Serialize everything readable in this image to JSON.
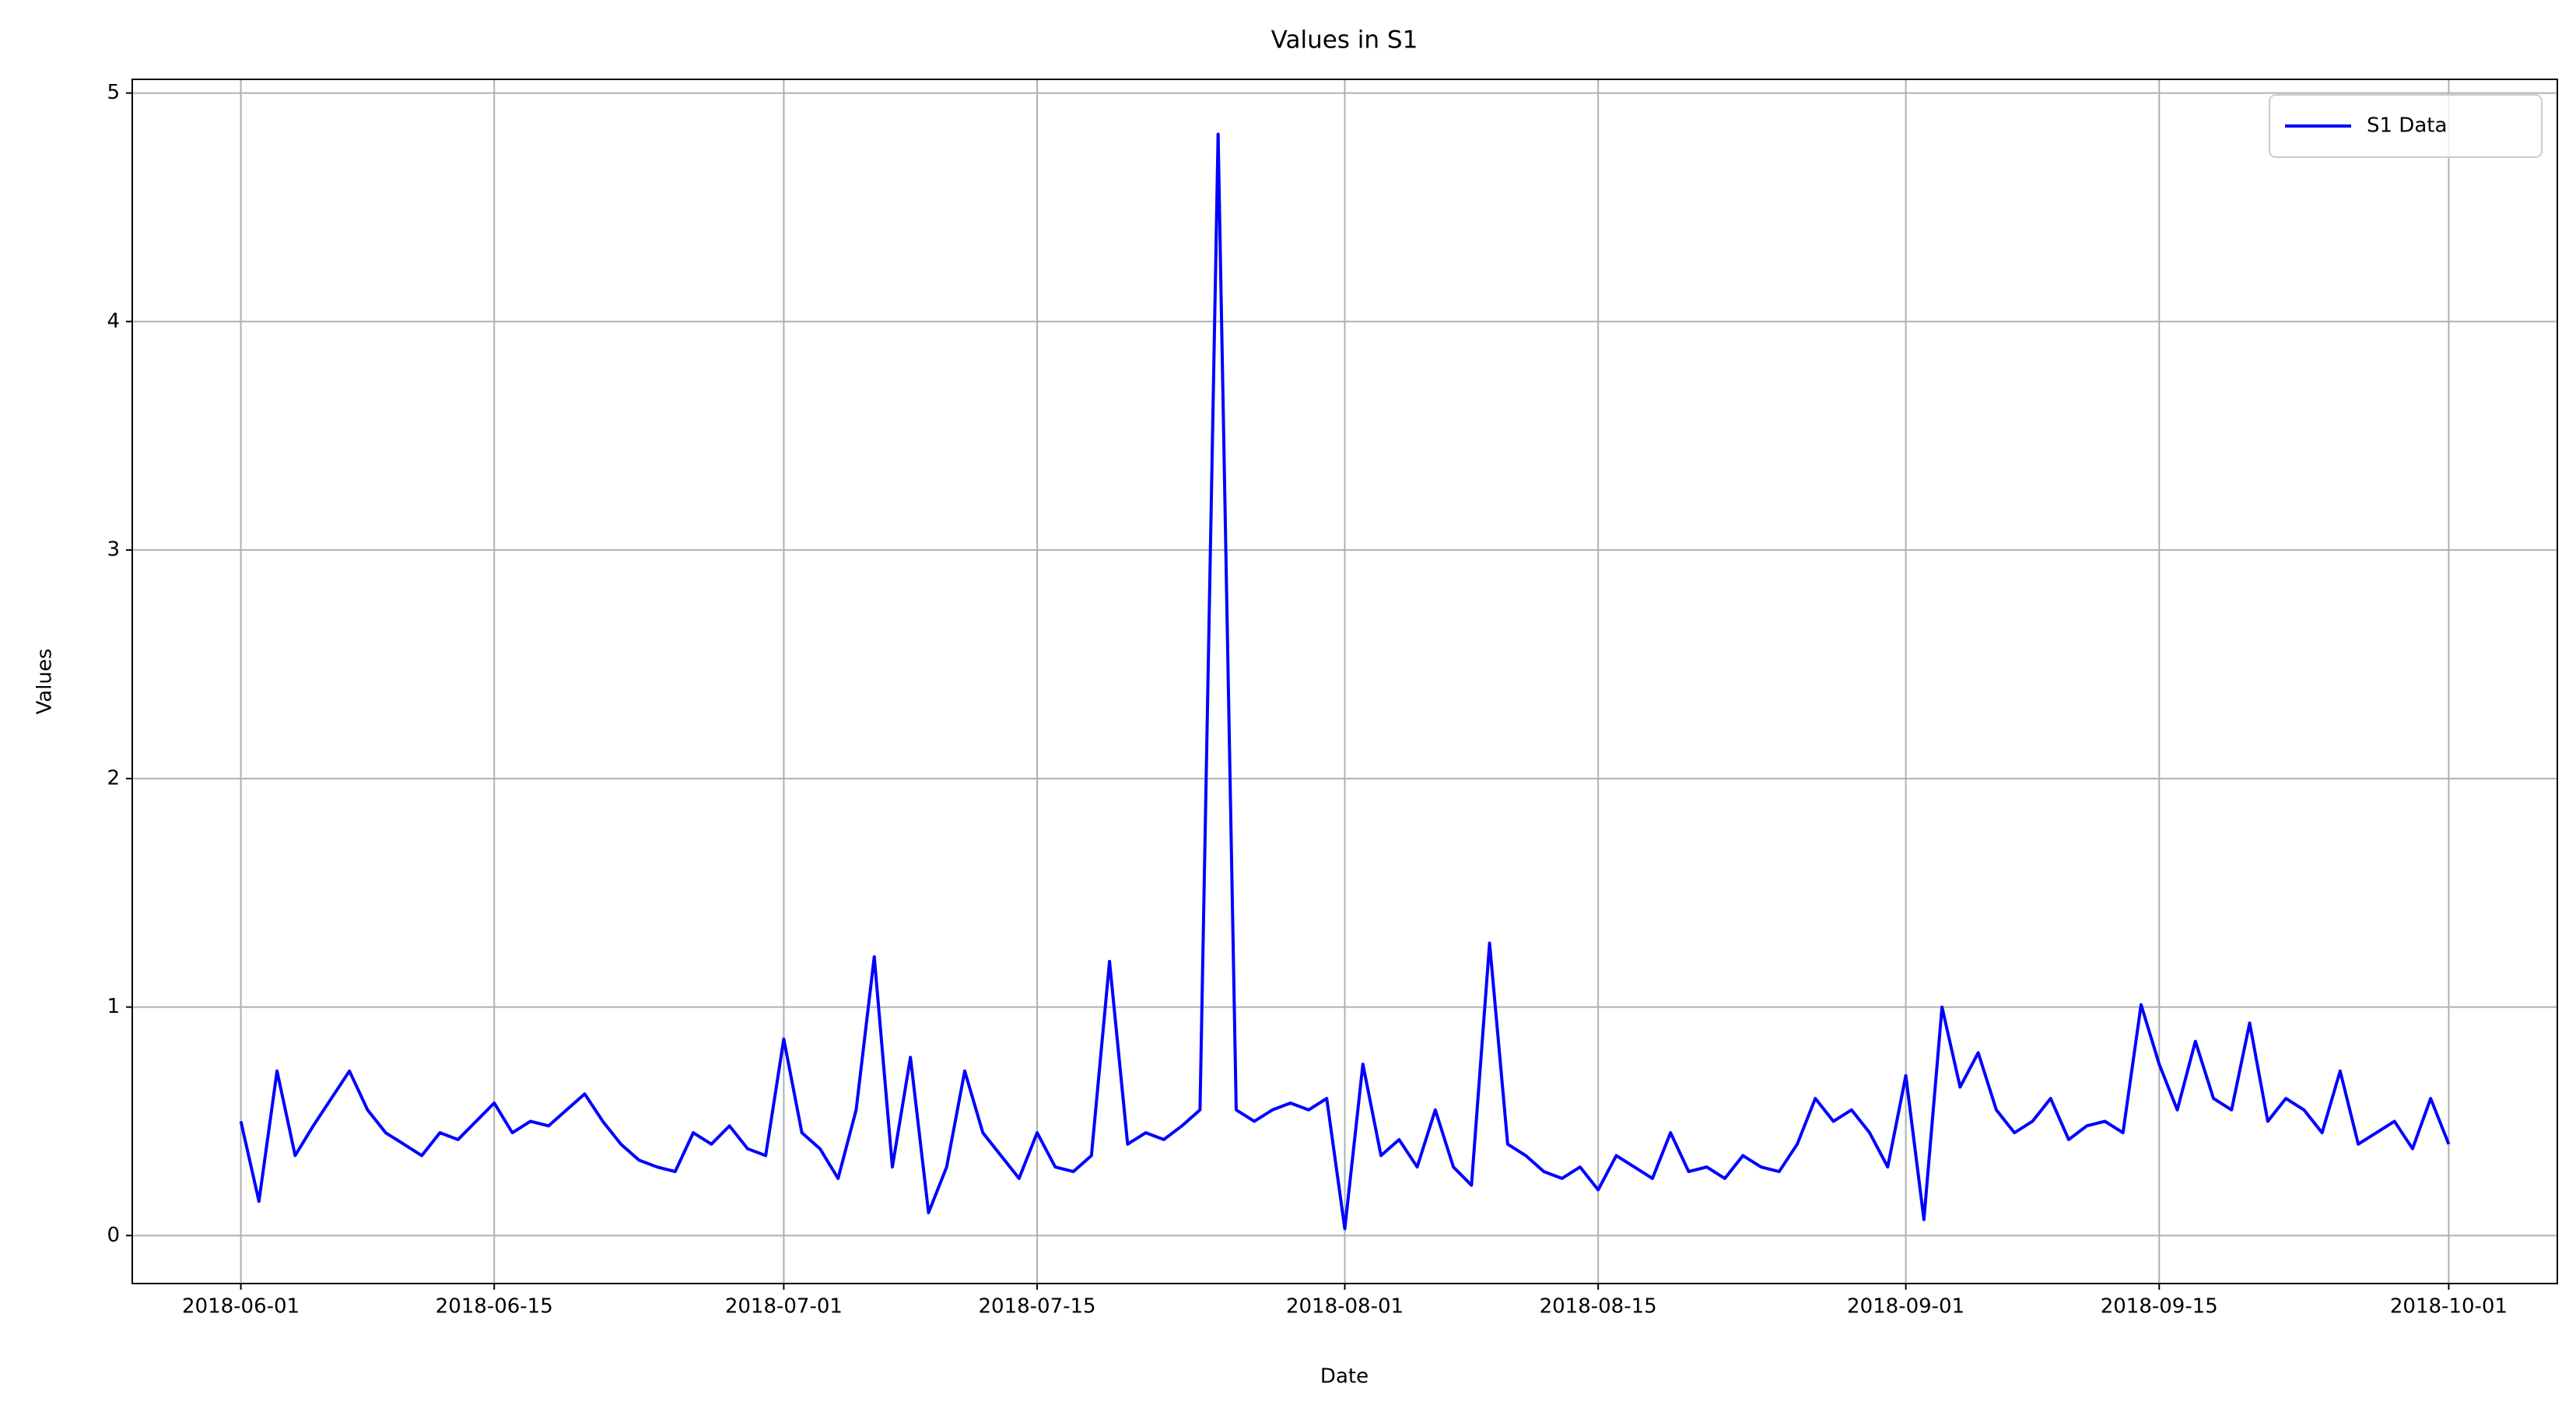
{
  "chart_data": {
    "type": "line",
    "title": "Values in S1",
    "xlabel": "Date",
    "ylabel": "Values",
    "x": [
      "2018-06-01",
      "2018-06-02",
      "2018-06-03",
      "2018-06-04",
      "2018-06-05",
      "2018-06-06",
      "2018-06-07",
      "2018-06-08",
      "2018-06-09",
      "2018-06-10",
      "2018-06-11",
      "2018-06-12",
      "2018-06-13",
      "2018-06-14",
      "2018-06-15",
      "2018-06-16",
      "2018-06-17",
      "2018-06-18",
      "2018-06-19",
      "2018-06-20",
      "2018-06-21",
      "2018-06-22",
      "2018-06-23",
      "2018-06-24",
      "2018-06-25",
      "2018-06-26",
      "2018-06-27",
      "2018-06-28",
      "2018-06-29",
      "2018-06-30",
      "2018-07-01",
      "2018-07-02",
      "2018-07-03",
      "2018-07-04",
      "2018-07-05",
      "2018-07-06",
      "2018-07-07",
      "2018-07-08",
      "2018-07-09",
      "2018-07-10",
      "2018-07-11",
      "2018-07-12",
      "2018-07-13",
      "2018-07-14",
      "2018-07-15",
      "2018-07-16",
      "2018-07-17",
      "2018-07-18",
      "2018-07-19",
      "2018-07-20",
      "2018-07-21",
      "2018-07-22",
      "2018-07-23",
      "2018-07-24",
      "2018-07-25",
      "2018-07-26",
      "2018-07-27",
      "2018-07-28",
      "2018-07-29",
      "2018-07-30",
      "2018-07-31",
      "2018-08-01",
      "2018-08-02",
      "2018-08-03",
      "2018-08-04",
      "2018-08-05",
      "2018-08-06",
      "2018-08-07",
      "2018-08-08",
      "2018-08-09",
      "2018-08-10",
      "2018-08-11",
      "2018-08-12",
      "2018-08-13",
      "2018-08-14",
      "2018-08-15",
      "2018-08-16",
      "2018-08-17",
      "2018-08-18",
      "2018-08-19",
      "2018-08-20",
      "2018-08-21",
      "2018-08-22",
      "2018-08-23",
      "2018-08-24",
      "2018-08-25",
      "2018-08-26",
      "2018-08-27",
      "2018-08-28",
      "2018-08-29",
      "2018-08-30",
      "2018-08-31",
      "2018-09-01",
      "2018-09-02",
      "2018-09-03",
      "2018-09-04",
      "2018-09-05",
      "2018-09-06",
      "2018-09-07",
      "2018-09-08",
      "2018-09-09",
      "2018-09-10",
      "2018-09-11",
      "2018-09-12",
      "2018-09-13",
      "2018-09-14",
      "2018-09-15",
      "2018-09-16",
      "2018-09-17",
      "2018-09-18",
      "2018-09-19",
      "2018-09-20",
      "2018-09-21",
      "2018-09-22",
      "2018-09-23",
      "2018-09-24",
      "2018-09-25",
      "2018-09-26",
      "2018-09-27",
      "2018-09-28",
      "2018-09-29",
      "2018-09-30",
      "2018-10-01"
    ],
    "series": [
      {
        "name": "S1 Data",
        "color": "#0000ff",
        "values": [
          0.5,
          0.15,
          0.72,
          0.35,
          0.48,
          0.6,
          0.72,
          0.55,
          0.45,
          0.4,
          0.35,
          0.45,
          0.42,
          0.5,
          0.58,
          0.45,
          0.5,
          0.48,
          0.55,
          0.62,
          0.5,
          0.4,
          0.33,
          0.3,
          0.28,
          0.45,
          0.4,
          0.48,
          0.38,
          0.35,
          0.86,
          0.45,
          0.38,
          0.25,
          0.55,
          1.22,
          0.3,
          0.78,
          0.1,
          0.3,
          0.72,
          0.45,
          0.35,
          0.25,
          0.45,
          0.3,
          0.28,
          0.35,
          1.2,
          0.4,
          0.45,
          0.42,
          0.48,
          0.55,
          4.82,
          0.55,
          0.5,
          0.55,
          0.58,
          0.55,
          0.6,
          0.03,
          0.75,
          0.35,
          0.42,
          0.3,
          0.55,
          0.3,
          0.22,
          1.28,
          0.4,
          0.35,
          0.28,
          0.25,
          0.3,
          0.2,
          0.35,
          0.3,
          0.25,
          0.45,
          0.28,
          0.3,
          0.25,
          0.35,
          0.3,
          0.28,
          0.4,
          0.6,
          0.5,
          0.55,
          0.45,
          0.3,
          0.7,
          0.07,
          1.0,
          0.65,
          0.8,
          0.55,
          0.45,
          0.5,
          0.6,
          0.42,
          0.48,
          0.5,
          0.45,
          1.01,
          0.75,
          0.55,
          0.85,
          0.6,
          0.55,
          0.93,
          0.5,
          0.6,
          0.55,
          0.45,
          0.72,
          0.4,
          0.45,
          0.5,
          0.38,
          0.6,
          0.4
        ]
      }
    ],
    "xlim": [
      "2018-05-26",
      "2018-10-07"
    ],
    "xticks": [
      "2018-06-01",
      "2018-06-15",
      "2018-07-01",
      "2018-07-15",
      "2018-08-01",
      "2018-08-15",
      "2018-09-01",
      "2018-09-15",
      "2018-10-01"
    ],
    "ylim": [
      -0.21,
      5.06
    ],
    "yticks": [
      0,
      1,
      2,
      3,
      4,
      5
    ],
    "grid": true,
    "legend": "upper right"
  }
}
